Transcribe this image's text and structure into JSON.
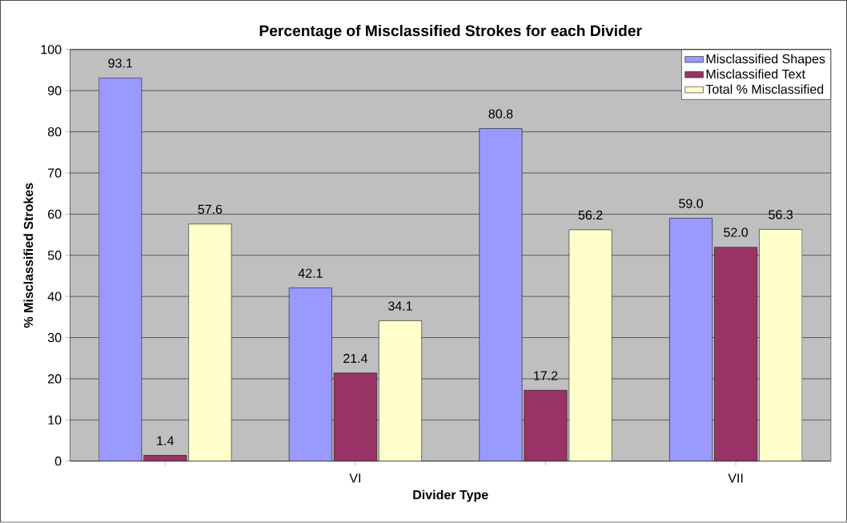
{
  "chart_data": {
    "type": "bar",
    "title": "Percentage of Misclassified Strokes for each Divider",
    "xlabel": "Divider Type",
    "ylabel": "% Misclassified Strokes",
    "categories": [
      null,
      "VI",
      null,
      "VII"
    ],
    "series": [
      {
        "name": "Misclassified Shapes",
        "color": "#9999ff",
        "values": [
          93.1,
          42.1,
          80.8,
          59.0
        ],
        "value_labels": [
          "93.1",
          "42.1",
          "80.8",
          "59.0"
        ]
      },
      {
        "name": "Misclassified Text",
        "color": "#993366",
        "values": [
          1.4,
          21.4,
          17.2,
          52.0
        ],
        "value_labels": [
          "1.4",
          "21.4",
          "17.2",
          "52.0"
        ]
      },
      {
        "name": "Total % Misclassified",
        "color": "#ffffcc",
        "values": [
          57.6,
          34.1,
          56.2,
          56.3
        ],
        "value_labels": [
          "57.6",
          "34.1",
          "56.2",
          "56.3"
        ]
      }
    ],
    "ylim": [
      0,
      100
    ],
    "yticks": [
      0,
      10,
      20,
      30,
      40,
      50,
      60,
      70,
      80,
      90,
      100
    ],
    "grid": "y",
    "legend": "top right"
  }
}
